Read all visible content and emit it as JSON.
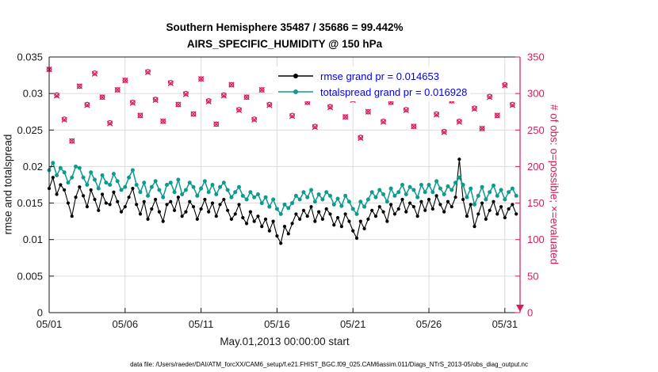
{
  "footer": "data file: /Users/raeder/DAI/ATM_forcXX/CAM6_setup/f.e21.FHIST_BGC.f09_025.CAM6assim.011/Diags_NTrS_2013-05/obs_diag_output.nc",
  "colors": {
    "rmse": "#000000",
    "totalspread": "#0e9b8d",
    "obs": "#d81b60",
    "legend_text": "#0000ee",
    "grid": "#dbdbdb",
    "axis": "#1a1a1a"
  },
  "icons": {
    "axis_end_arrow": "triangle-down"
  },
  "chart_data": {
    "type": "line",
    "title": "Southern Hemisphere 35487 / 35686 = 99.442%",
    "subtitle": "AIRS_SPECIFIC_HUMIDITY @ 150 hPa",
    "xlabel": "May.01,2013 00:00:00 start",
    "ylabel_left": "rmse and totalspread",
    "ylabel_right": "# of obs: o=possible; ×=evaluated",
    "grid": true,
    "legend_position": "top-center-inside",
    "xlim_days": [
      0,
      31
    ],
    "x_tick_positions": [
      0,
      5,
      10,
      15,
      20,
      25,
      30
    ],
    "x_tick_labels": [
      "05/01",
      "05/06",
      "05/11",
      "05/16",
      "05/21",
      "05/26",
      "05/31"
    ],
    "ylim_left": [
      0,
      0.035
    ],
    "y_ticks_left": [
      0,
      0.005,
      0.01,
      0.015,
      0.02,
      0.025,
      0.03,
      0.035
    ],
    "y_tick_labels_left": [
      "0",
      "0.005",
      "0.01",
      "0.015",
      "0.02",
      "0.025",
      "0.03",
      "0.035"
    ],
    "ylim_right": [
      0,
      350
    ],
    "y_ticks_right": [
      0,
      50,
      100,
      150,
      200,
      250,
      300,
      350
    ],
    "y_tick_labels_right": [
      "0",
      "50",
      "100",
      "150",
      "200",
      "250",
      "300",
      "350"
    ],
    "series": [
      {
        "name": "rmse grand pr = 0.014653",
        "type": "line-markers",
        "marker": "filled-circle",
        "axis": "left",
        "color_key": "rmse",
        "x_start": 0,
        "x_step": 0.25,
        "values": [
          0.017,
          0.0185,
          0.0162,
          0.0175,
          0.0168,
          0.015,
          0.0132,
          0.0158,
          0.0172,
          0.016,
          0.0145,
          0.0168,
          0.0155,
          0.014,
          0.0162,
          0.015,
          0.0148,
          0.0165,
          0.0152,
          0.0138,
          0.0145,
          0.0158,
          0.017,
          0.0148,
          0.0135,
          0.0152,
          0.0128,
          0.0142,
          0.0155,
          0.0138,
          0.0125,
          0.0148,
          0.0152,
          0.014,
          0.0158,
          0.0132,
          0.0138,
          0.0152,
          0.0145,
          0.0128,
          0.0142,
          0.0155,
          0.0138,
          0.015,
          0.0132,
          0.0148,
          0.0155,
          0.014,
          0.0128,
          0.0135,
          0.0148,
          0.013,
          0.0122,
          0.0138,
          0.0125,
          0.0132,
          0.0118,
          0.0128,
          0.0112,
          0.0125,
          0.0105,
          0.0095,
          0.0118,
          0.0108,
          0.0122,
          0.0135,
          0.0128,
          0.014,
          0.0132,
          0.0145,
          0.0125,
          0.0138,
          0.0128,
          0.0142,
          0.0135,
          0.012,
          0.013,
          0.0118,
          0.0135,
          0.0125,
          0.0112,
          0.0102,
          0.0125,
          0.0115,
          0.0128,
          0.014,
          0.0132,
          0.0145,
          0.0138,
          0.0125,
          0.0148,
          0.0135,
          0.0142,
          0.0155,
          0.0138,
          0.015,
          0.0145,
          0.0132,
          0.0152,
          0.014,
          0.0155,
          0.0142,
          0.016,
          0.0148,
          0.0138,
          0.0152,
          0.0145,
          0.0158,
          0.021,
          0.0155,
          0.0132,
          0.0148,
          0.0118,
          0.0135,
          0.015,
          0.0128,
          0.014,
          0.0152,
          0.0135,
          0.0145,
          0.013,
          0.0142,
          0.0148,
          0.0135
        ]
      },
      {
        "name": "totalspread grand pr = 0.016928",
        "type": "line-markers",
        "marker": "filled-circle",
        "axis": "left",
        "color_key": "totalspread",
        "x_start": 0,
        "x_step": 0.25,
        "values": [
          0.0195,
          0.0205,
          0.0188,
          0.0198,
          0.0192,
          0.0178,
          0.0185,
          0.02,
          0.0198,
          0.0185,
          0.0175,
          0.0192,
          0.0182,
          0.017,
          0.0188,
          0.0178,
          0.0175,
          0.019,
          0.018,
          0.0168,
          0.0172,
          0.0185,
          0.0195,
          0.0175,
          0.0165,
          0.0178,
          0.016,
          0.0172,
          0.018,
          0.0168,
          0.0158,
          0.0175,
          0.0178,
          0.0165,
          0.0182,
          0.0162,
          0.0168,
          0.0178,
          0.0172,
          0.016,
          0.017,
          0.018,
          0.0165,
          0.0175,
          0.0162,
          0.0172,
          0.0178,
          0.0168,
          0.0158,
          0.0165,
          0.0172,
          0.016,
          0.0155,
          0.0165,
          0.0158,
          0.0162,
          0.015,
          0.0158,
          0.0145,
          0.0155,
          0.0142,
          0.0135,
          0.0148,
          0.0143,
          0.015,
          0.016,
          0.0155,
          0.0165,
          0.0158,
          0.0168,
          0.0152,
          0.0162,
          0.0155,
          0.0165,
          0.016,
          0.0148,
          0.0156,
          0.0146,
          0.016,
          0.0152,
          0.0142,
          0.0135,
          0.0152,
          0.0145,
          0.0155,
          0.0165,
          0.0158,
          0.0168,
          0.0162,
          0.0152,
          0.017,
          0.016,
          0.0165,
          0.0175,
          0.0162,
          0.0172,
          0.0168,
          0.0158,
          0.0175,
          0.0165,
          0.0175,
          0.0165,
          0.018,
          0.017,
          0.0162,
          0.0173,
          0.0168,
          0.0178,
          0.0185,
          0.0175,
          0.0158,
          0.017,
          0.0148,
          0.016,
          0.0172,
          0.0155,
          0.0165,
          0.0174,
          0.016,
          0.0168,
          0.0155,
          0.0165,
          0.017,
          0.016
        ]
      },
      {
        "name": "# of obs possible",
        "type": "scatter",
        "marker": "open-circle",
        "axis": "right",
        "color_key": "obs",
        "x_start": 0,
        "x_step": 0.5,
        "values": [
          333,
          298,
          265,
          235,
          310,
          285,
          328,
          295,
          260,
          305,
          318,
          288,
          270,
          330,
          292,
          262,
          315,
          285,
          300,
          272,
          320,
          290,
          258,
          298,
          312,
          278,
          295,
          265,
          305,
          285,
          330,
          295,
          270,
          310,
          288,
          255,
          300,
          282,
          318,
          268,
          292,
          240,
          275,
          305,
          262,
          288,
          310,
          278,
          255,
          295,
          315,
          272,
          248,
          290,
          262,
          305,
          280,
          252,
          296,
          270,
          312,
          285
        ]
      },
      {
        "name": "# of obs evaluated",
        "type": "scatter",
        "marker": "x-cross",
        "axis": "right",
        "color_key": "obs",
        "x_start": 0,
        "x_step": 0.5,
        "values": [
          333,
          297,
          264,
          235,
          310,
          284,
          327,
          295,
          259,
          305,
          318,
          287,
          270,
          329,
          291,
          262,
          314,
          285,
          299,
          272,
          320,
          289,
          258,
          297,
          312,
          277,
          295,
          264,
          305,
          284,
          329,
          295,
          269,
          310,
          288,
          254,
          300,
          281,
          317,
          268,
          291,
          239,
          275,
          304,
          261,
          288,
          309,
          277,
          255,
          294,
          315,
          271,
          247,
          290,
          261,
          305,
          279,
          252,
          295,
          270,
          311,
          284
        ]
      }
    ]
  }
}
